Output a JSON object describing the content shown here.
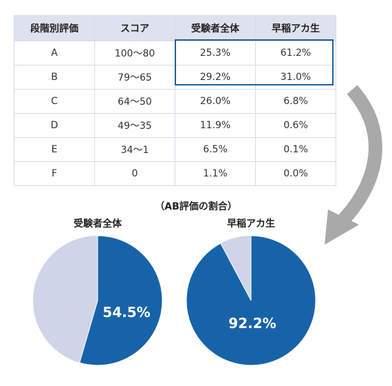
{
  "table": {
    "headers": [
      "段階別評価",
      "スコア",
      "受験者全体",
      "早稲アカ生"
    ],
    "rows": [
      [
        "A",
        "100〜80",
        "25.3%",
        "61.2%"
      ],
      [
        "B",
        "79〜65",
        "29.2%",
        "31.0%"
      ],
      [
        "C",
        "64〜50",
        "26.0%",
        "6.8%"
      ],
      [
        "D",
        "49〜35",
        "11.9%",
        "0.6%"
      ],
      [
        "E",
        "34〜1",
        "6.5%",
        "0.1%"
      ],
      [
        "F",
        "0",
        "1.1%",
        "0.0%"
      ]
    ]
  },
  "chart_data": {
    "type": "pie",
    "title": "（AB評価の割合）",
    "pies": [
      {
        "name": "受験者全体",
        "value": 54.5,
        "label": "54.5%"
      },
      {
        "name": "早稲アカ生",
        "value": 92.2,
        "label": "92.2%"
      }
    ]
  },
  "colors": {
    "highlight": "#1763a9",
    "remainder": "#cfd4e8",
    "header_bg": "#dde2ee",
    "frame": "#1f5f99",
    "arrow": "#a9a9a9"
  }
}
